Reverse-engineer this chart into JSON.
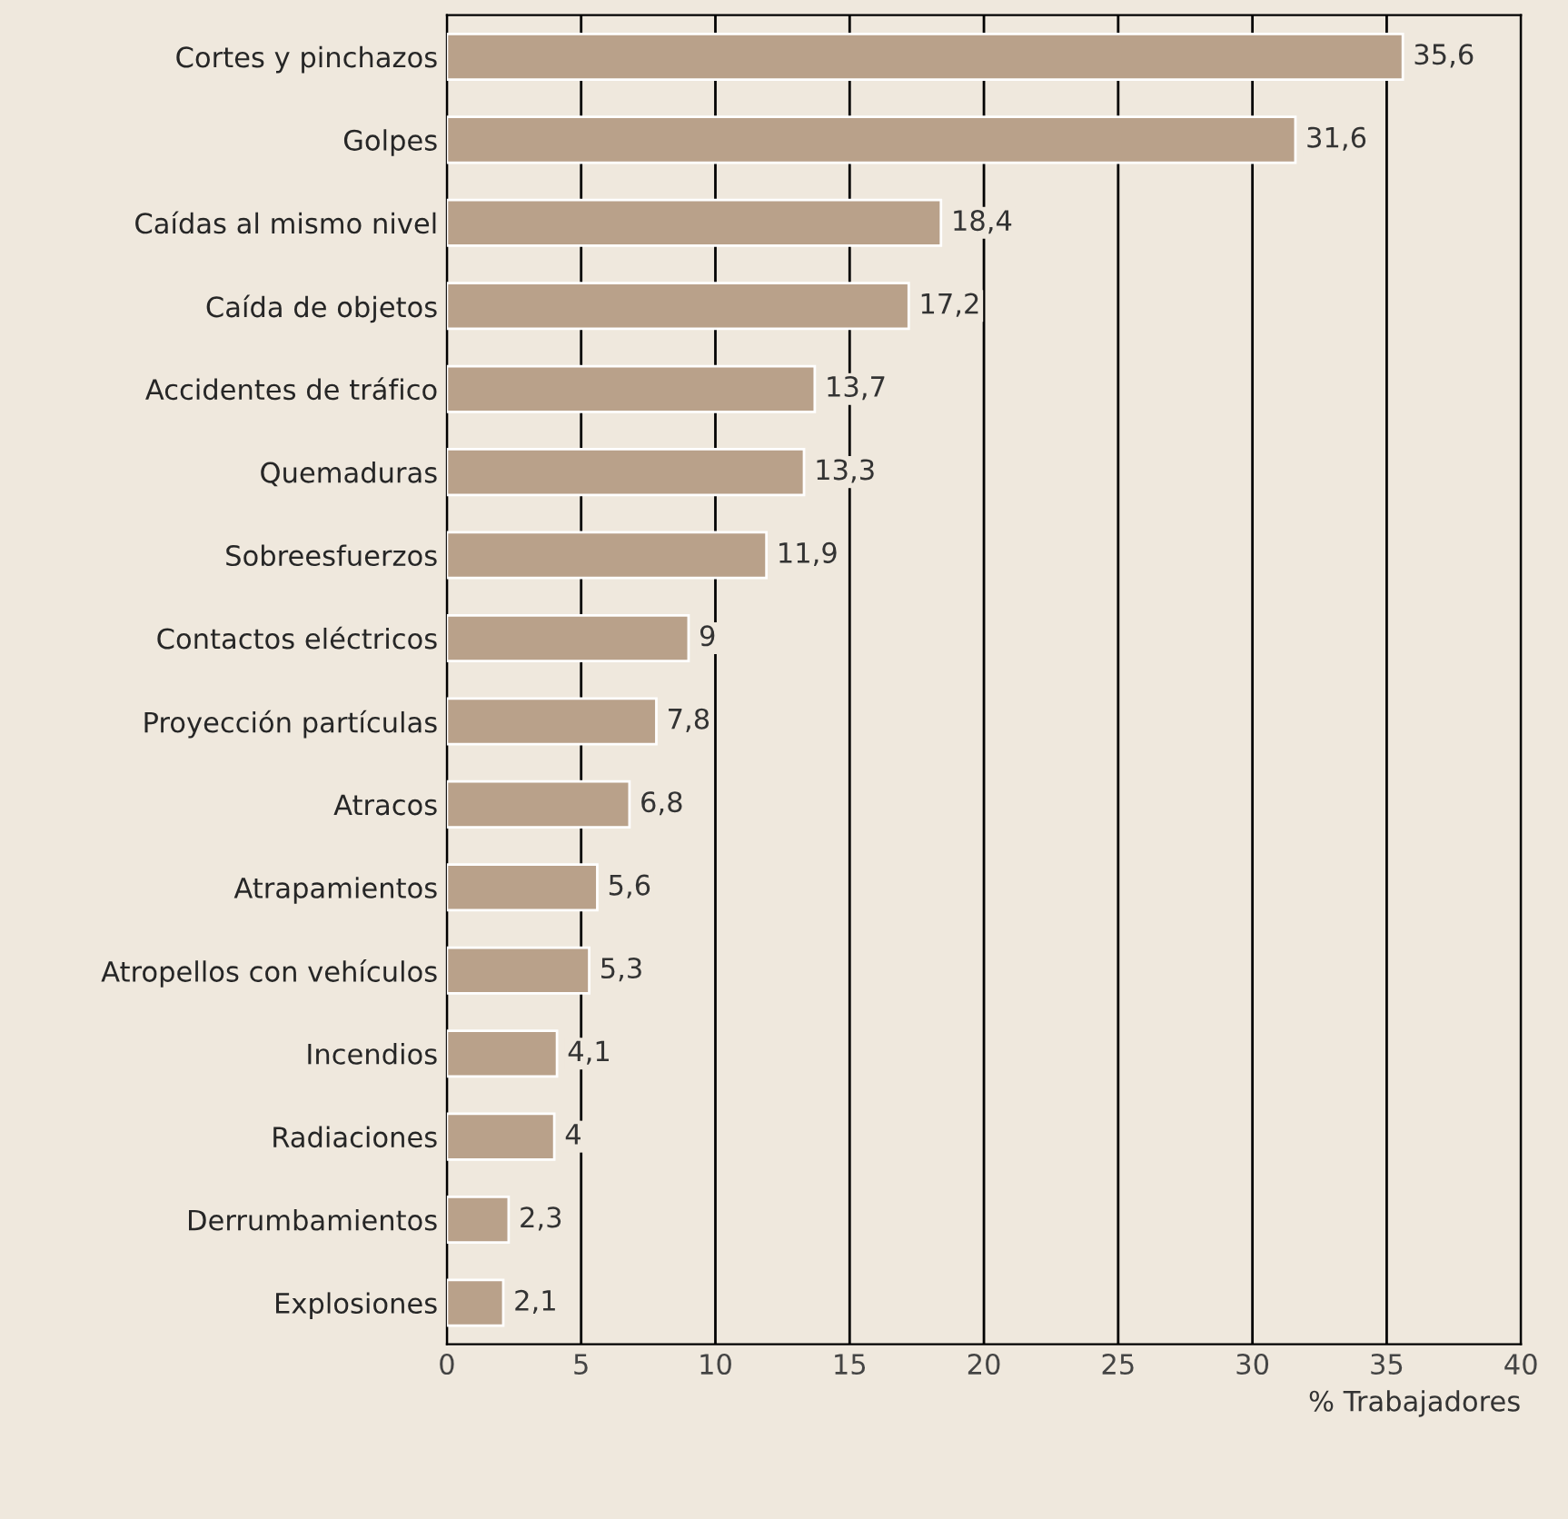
{
  "chart_data": {
    "type": "bar",
    "orientation": "horizontal",
    "categories": [
      "Cortes y pinchazos",
      "Golpes",
      "Caídas al mismo nivel",
      "Caída de objetos",
      "Accidentes de tráfico",
      "Quemaduras",
      "Sobreesfuerzos",
      "Contactos eléctricos",
      "Proyección partículas",
      "Atracos",
      "Atrapamientos",
      "Atropellos con vehículos",
      "Incendios",
      "Radiaciones",
      "Derrumbamientos",
      "Explosiones"
    ],
    "values": [
      35.6,
      31.6,
      18.4,
      17.2,
      13.7,
      13.3,
      11.9,
      9,
      7.8,
      6.8,
      5.6,
      5.3,
      4.1,
      4,
      2.3,
      2.1
    ],
    "value_labels": [
      "35,6",
      "31,6",
      "18,4",
      "17,2",
      "13,7",
      "13,3",
      "11,9",
      "9",
      "7,8",
      "6,8",
      "5,6",
      "5,3",
      "4,1",
      "4",
      "2,3",
      "2,1"
    ],
    "color": "#b9a18a",
    "xlim": [
      0,
      40
    ],
    "xticks": [
      0,
      5,
      10,
      15,
      20,
      25,
      30,
      35,
      40
    ],
    "xlabel": "% Trabajadores",
    "grid": "x"
  }
}
